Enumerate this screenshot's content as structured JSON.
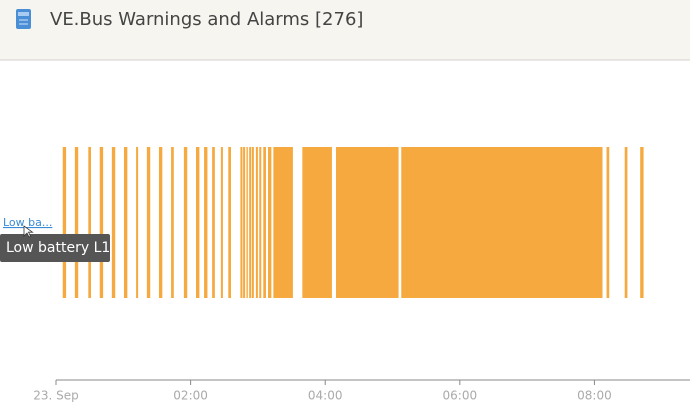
{
  "header": {
    "title": "VE.Bus Warnings and Alarms [276]"
  },
  "chart_data": {
    "type": "timeline",
    "row_label": "Low ba...",
    "tooltip": "Low battery L1",
    "color": "#f5a93e",
    "xlim": [
      0,
      9.42
    ],
    "xticks": [
      {
        "value": 0,
        "label": "23. Sep"
      },
      {
        "value": 2,
        "label": "02:00"
      },
      {
        "value": 4,
        "label": "04:00"
      },
      {
        "value": 6,
        "label": "06:00"
      },
      {
        "value": 8,
        "label": "08:00"
      }
    ],
    "start": [
      0.1,
      0.28,
      0.48,
      0.65,
      0.83,
      1.01,
      1.19,
      1.35,
      1.53,
      1.71,
      1.9,
      2.08,
      2.2,
      2.32,
      2.45,
      2.56,
      2.74,
      2.78,
      2.83,
      2.87,
      2.91,
      2.97,
      3.02,
      3.08,
      3.15,
      3.23,
      3.66,
      4.16,
      5.13,
      8.18,
      8.45,
      8.68
    ],
    "end": [
      0.15,
      0.33,
      0.52,
      0.7,
      0.88,
      1.06,
      1.22,
      1.4,
      1.58,
      1.75,
      1.95,
      2.13,
      2.25,
      2.36,
      2.48,
      2.6,
      2.77,
      2.81,
      2.85,
      2.9,
      2.94,
      3.0,
      3.05,
      3.12,
      3.2,
      3.52,
      4.1,
      5.09,
      8.12,
      8.22,
      8.49,
      8.73
    ]
  }
}
